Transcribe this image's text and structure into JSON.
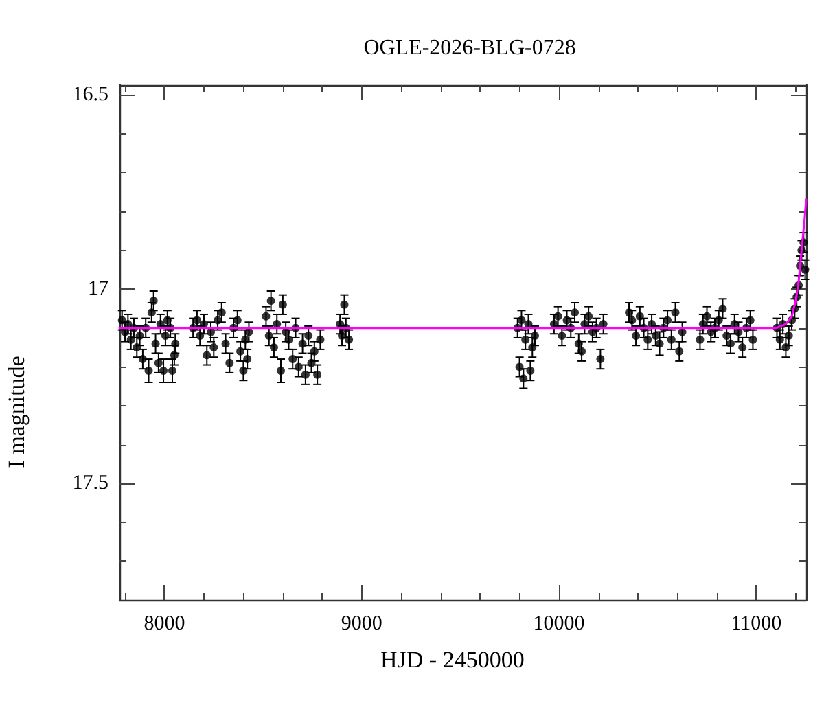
{
  "chart_data": {
    "type": "scatter",
    "title": "OGLE-2026-BLG-0728",
    "xlabel": "HJD - 2450000",
    "ylabel": "I magnitude",
    "xlim": [
      7772,
      11253
    ],
    "ylim": [
      17.8,
      16.475
    ],
    "xticks": [
      {
        "value": 7800,
        "label": null
      },
      8000,
      {
        "value": 8200,
        "label": null
      },
      {
        "value": 8400,
        "label": null
      },
      {
        "value": 8600,
        "label": null
      },
      {
        "value": 8800,
        "label": null
      },
      9000,
      {
        "value": 9200,
        "label": null
      },
      {
        "value": 9400,
        "label": null
      },
      {
        "value": 9600,
        "label": null
      },
      {
        "value": 9800,
        "label": null
      },
      10000,
      {
        "value": 10200,
        "label": null
      },
      {
        "value": 10400,
        "label": null
      },
      {
        "value": 10600,
        "label": null
      },
      {
        "value": 10800,
        "label": null
      },
      11000,
      {
        "value": 11200,
        "label": null
      }
    ],
    "yticks": [
      16.5,
      {
        "value": 16.6,
        "label": null
      },
      {
        "value": 16.7,
        "label": null
      },
      {
        "value": 16.8,
        "label": null
      },
      {
        "value": 16.9,
        "label": null
      },
      17,
      {
        "value": 17.1,
        "label": null
      },
      {
        "value": 17.2,
        "label": null
      },
      {
        "value": 17.3,
        "label": null
      },
      {
        "value": 17.4,
        "label": null
      },
      17.5,
      {
        "value": 17.6,
        "label": null
      },
      {
        "value": 17.7,
        "label": null
      }
    ],
    "grid": false,
    "series": [
      {
        "color": "#000000",
        "marker": "circle",
        "x": [
          7785,
          7800,
          7815,
          7830,
          7845,
          7860,
          7875,
          7890,
          7905,
          7920,
          7935,
          7945,
          7955,
          7970,
          7980,
          7995,
          8005,
          8015,
          8030,
          8040,
          8050,
          8055,
          8145,
          8165,
          8180,
          8200,
          8215,
          8235,
          8250,
          8270,
          8290,
          8310,
          8330,
          8350,
          8370,
          8385,
          8400,
          8410,
          8420,
          8428,
          8515,
          8530,
          8540,
          8555,
          8570,
          8590,
          8600,
          8615,
          8630,
          8650,
          8665,
          8680,
          8700,
          8715,
          8730,
          8745,
          8760,
          8775,
          8790,
          8890,
          8900,
          8912,
          8920,
          8935,
          9790,
          9800,
          9810,
          9820,
          9830,
          9845,
          9855,
          9865,
          9878,
          9975,
          9995,
          10015,
          10040,
          10060,
          10080,
          10100,
          10115,
          10130,
          10150,
          10170,
          10190,
          10210,
          10225,
          10355,
          10370,
          10390,
          10410,
          10430,
          10450,
          10470,
          10490,
          10510,
          10530,
          10550,
          10570,
          10590,
          10610,
          10625,
          10715,
          10730,
          10750,
          10770,
          10790,
          10810,
          10830,
          10850,
          10870,
          10890,
          10910,
          10930,
          10950,
          10970,
          10983,
          11105,
          11120,
          11135,
          11150,
          11165,
          11180,
          11195,
          11205,
          11215,
          11222,
          11230,
          11240,
          11248
        ],
        "values": [
          17.08,
          17.11,
          17.09,
          17.13,
          17.1,
          17.15,
          17.12,
          17.18,
          17.1,
          17.21,
          17.06,
          17.03,
          17.14,
          17.19,
          17.09,
          17.21,
          17.12,
          17.08,
          17.1,
          17.21,
          17.17,
          17.14,
          17.1,
          17.08,
          17.12,
          17.09,
          17.17,
          17.11,
          17.15,
          17.08,
          17.06,
          17.14,
          17.19,
          17.1,
          17.08,
          17.16,
          17.21,
          17.13,
          17.18,
          17.11,
          17.07,
          17.12,
          17.03,
          17.15,
          17.09,
          17.21,
          17.04,
          17.11,
          17.13,
          17.18,
          17.1,
          17.2,
          17.14,
          17.22,
          17.12,
          17.19,
          17.16,
          17.22,
          17.13,
          17.09,
          17.12,
          17.04,
          17.1,
          17.13,
          17.1,
          17.2,
          17.08,
          17.23,
          17.13,
          17.09,
          17.21,
          17.15,
          17.12,
          17.09,
          17.07,
          17.12,
          17.08,
          17.1,
          17.06,
          17.14,
          17.16,
          17.09,
          17.07,
          17.11,
          17.1,
          17.18,
          17.09,
          17.06,
          17.08,
          17.12,
          17.07,
          17.1,
          17.13,
          17.09,
          17.12,
          17.14,
          17.1,
          17.08,
          17.13,
          17.06,
          17.16,
          17.11,
          17.13,
          17.09,
          17.07,
          17.11,
          17.1,
          17.08,
          17.05,
          17.12,
          17.14,
          17.09,
          17.11,
          17.15,
          17.1,
          17.08,
          17.13,
          17.1,
          17.13,
          17.09,
          17.15,
          17.12,
          17.08,
          17.05,
          17.02,
          16.99,
          16.94,
          16.9,
          16.88,
          16.95
        ],
        "errors": [
          0.025,
          0.025,
          0.025,
          0.025,
          0.025,
          0.025,
          0.025,
          0.025,
          0.025,
          0.03,
          0.025,
          0.025,
          0.025,
          0.025,
          0.025,
          0.03,
          0.025,
          0.025,
          0.025,
          0.03,
          0.025,
          0.025,
          0.025,
          0.025,
          0.025,
          0.025,
          0.025,
          0.025,
          0.025,
          0.025,
          0.025,
          0.025,
          0.025,
          0.025,
          0.025,
          0.025,
          0.025,
          0.025,
          0.025,
          0.025,
          0.025,
          0.025,
          0.025,
          0.025,
          0.025,
          0.03,
          0.025,
          0.025,
          0.025,
          0.025,
          0.025,
          0.025,
          0.025,
          0.025,
          0.025,
          0.025,
          0.025,
          0.025,
          0.025,
          0.025,
          0.025,
          0.025,
          0.025,
          0.025,
          0.025,
          0.025,
          0.025,
          0.025,
          0.025,
          0.025,
          0.025,
          0.025,
          0.025,
          0.025,
          0.025,
          0.025,
          0.025,
          0.025,
          0.025,
          0.025,
          0.025,
          0.025,
          0.025,
          0.025,
          0.025,
          0.025,
          0.025,
          0.025,
          0.025,
          0.025,
          0.025,
          0.025,
          0.025,
          0.025,
          0.025,
          0.03,
          0.025,
          0.025,
          0.025,
          0.025,
          0.025,
          0.025,
          0.025,
          0.025,
          0.025,
          0.025,
          0.025,
          0.025,
          0.025,
          0.025,
          0.025,
          0.025,
          0.025,
          0.025,
          0.025,
          0.025,
          0.025,
          0.025,
          0.025,
          0.025,
          0.025,
          0.025,
          0.025,
          0.025,
          0.025,
          0.025,
          0.025,
          0.025,
          0.025,
          0.025
        ]
      },
      {
        "type": "line",
        "color": "#ff00ff",
        "marker": "none",
        "line_style": "solid",
        "x": [
          7772,
          11100,
          11150,
          11180,
          11200,
          11215,
          11230,
          11245,
          11253
        ],
        "values": [
          17.1,
          17.1,
          17.09,
          17.07,
          17.03,
          16.98,
          16.9,
          16.82,
          16.77
        ]
      }
    ]
  }
}
